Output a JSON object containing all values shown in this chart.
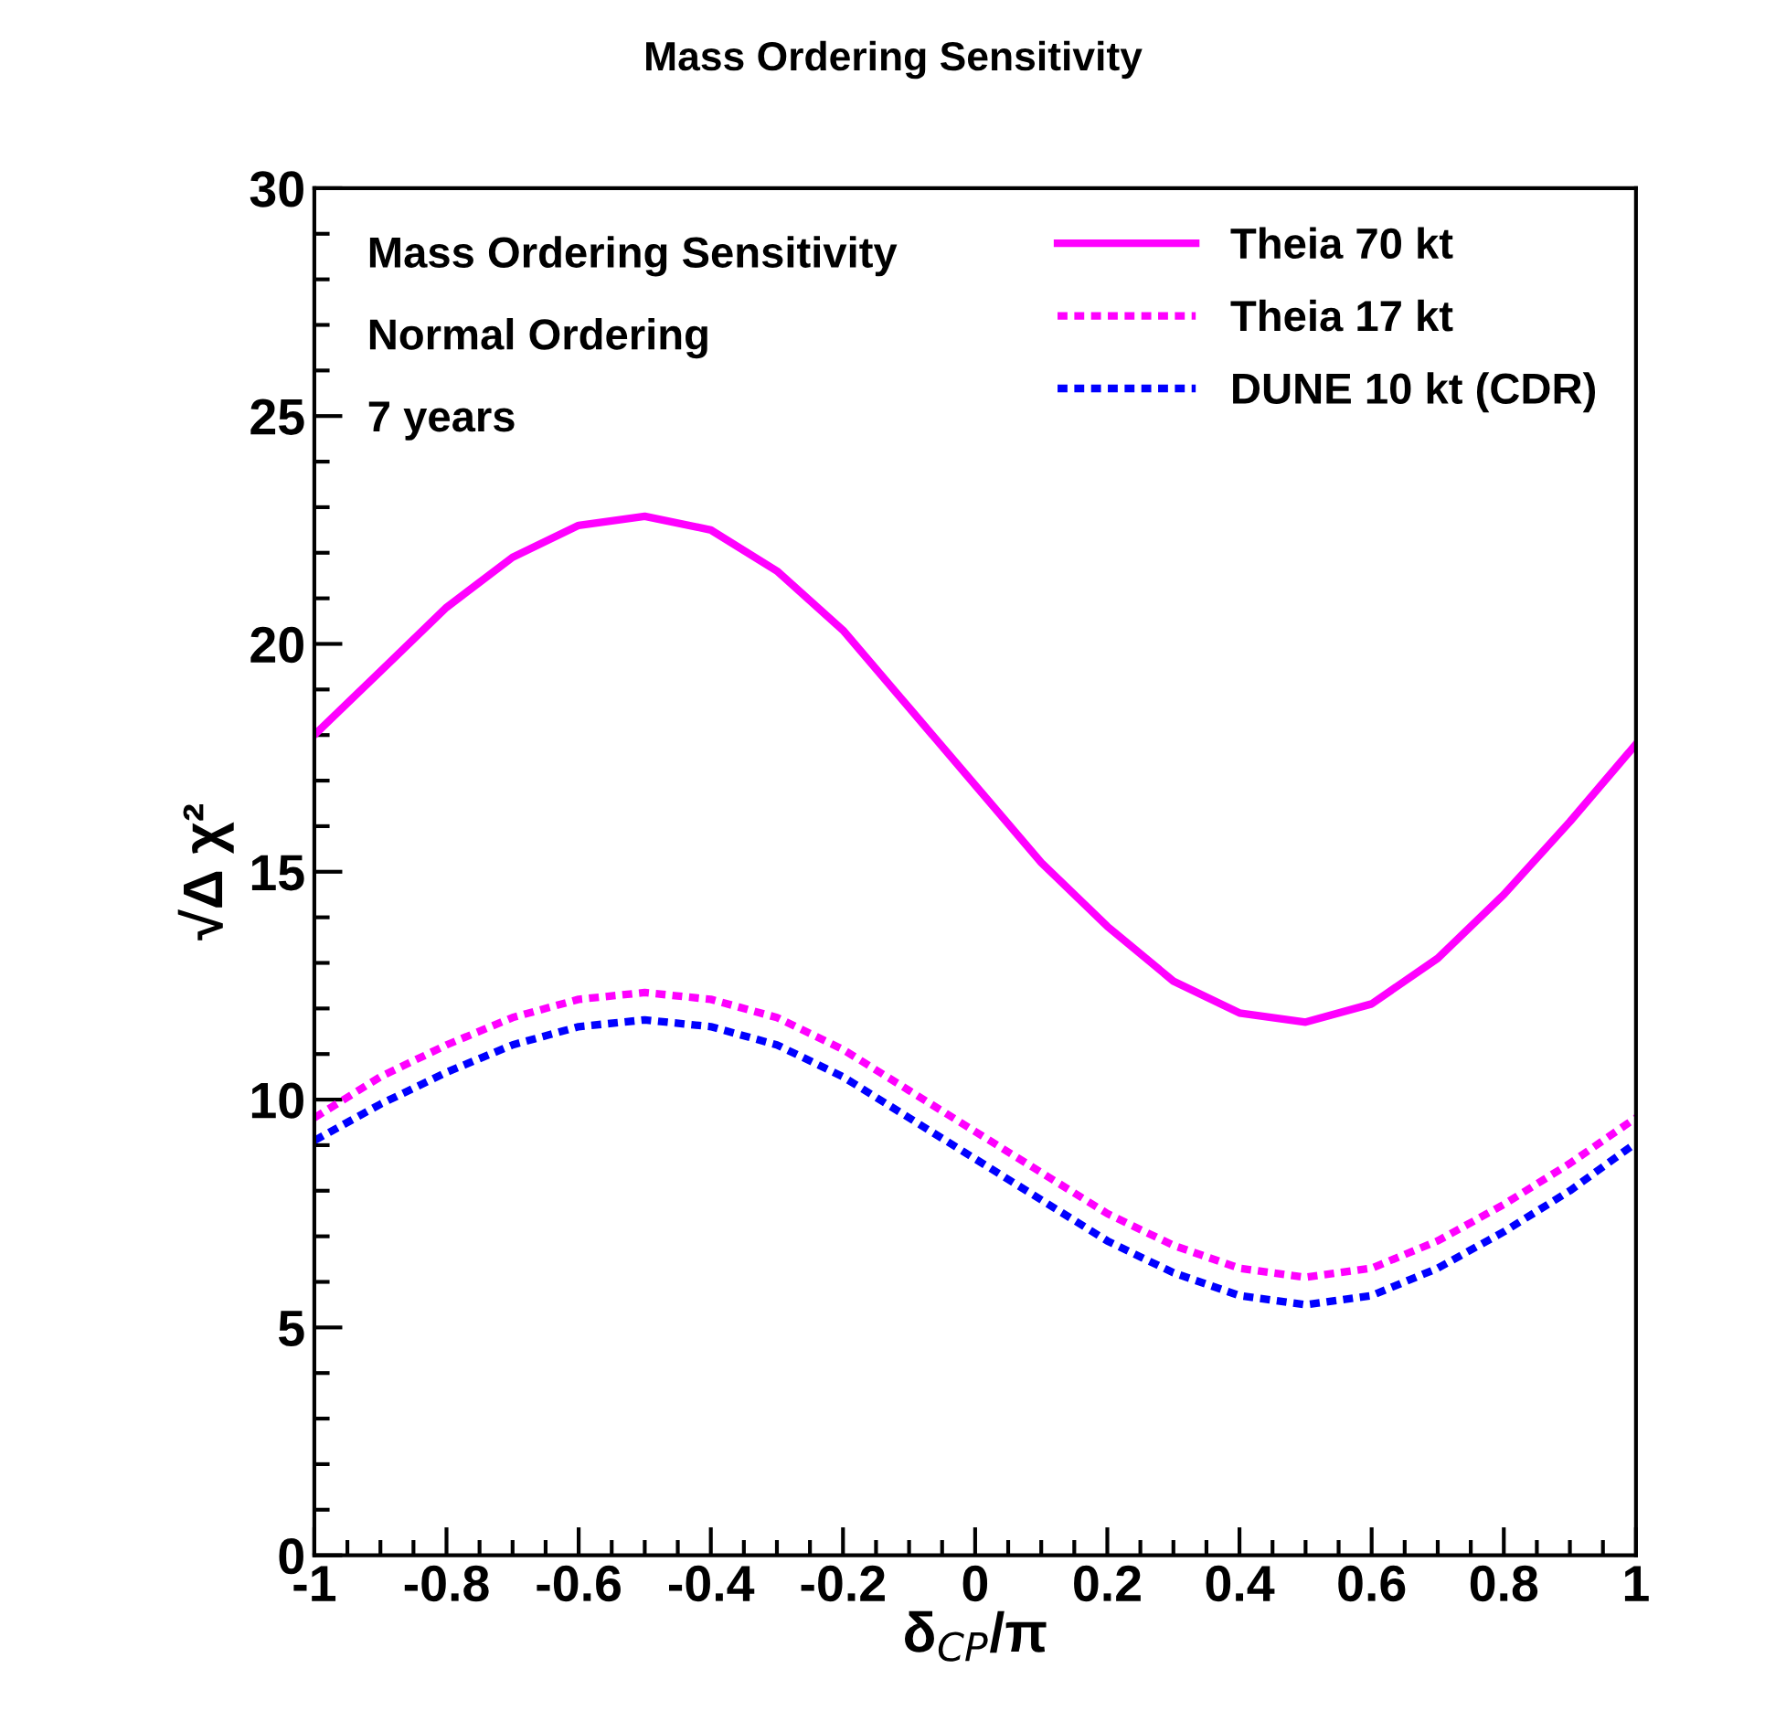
{
  "chart_data": {
    "type": "line",
    "title": "Mass Ordering Sensitivity",
    "xlabel": "δ$_{CP}$/π",
    "ylabel": "√Δ χ²",
    "annotations": [
      "Mass Ordering Sensitivity",
      "Normal Ordering",
      "7 years"
    ],
    "x": [
      -1,
      -0.9,
      -0.8,
      -0.7,
      -0.6,
      -0.5,
      -0.4,
      -0.3,
      -0.2,
      -0.1,
      0,
      0.1,
      0.2,
      0.3,
      0.4,
      0.5,
      0.6,
      0.7,
      0.8,
      0.9,
      1
    ],
    "series": [
      {
        "name": "Theia 70 kt",
        "color": "#ff00ff",
        "line_style": "solid",
        "values": [
          18.0,
          19.4,
          20.8,
          21.9,
          22.6,
          22.8,
          22.5,
          21.6,
          20.3,
          18.6,
          16.9,
          15.2,
          13.8,
          12.6,
          11.9,
          11.7,
          12.1,
          13.1,
          14.5,
          16.1,
          17.8
        ]
      },
      {
        "name": "Theia 17 kt",
        "color": "#ff00ff",
        "line_style": "dotted",
        "values": [
          9.6,
          10.5,
          11.2,
          11.8,
          12.2,
          12.35,
          12.2,
          11.8,
          11.1,
          10.2,
          9.3,
          8.4,
          7.5,
          6.8,
          6.3,
          6.1,
          6.3,
          6.9,
          7.7,
          8.6,
          9.6
        ]
      },
      {
        "name": "DUNE 10 kt (CDR)",
        "color": "#0000ff",
        "line_style": "dotted",
        "values": [
          9.1,
          9.9,
          10.6,
          11.2,
          11.6,
          11.75,
          11.6,
          11.2,
          10.5,
          9.6,
          8.7,
          7.8,
          6.9,
          6.2,
          5.7,
          5.5,
          5.7,
          6.3,
          7.1,
          8.0,
          9.05
        ]
      }
    ],
    "xlim": [
      -1,
      1
    ],
    "ylim": [
      0,
      30
    ],
    "xticks": [
      -1,
      -0.8,
      -0.6,
      -0.4,
      -0.2,
      0,
      0.2,
      0.4,
      0.6,
      0.8,
      1
    ],
    "yticks": [
      0,
      5,
      10,
      15,
      20,
      25,
      30
    ],
    "grid": false,
    "legend": "top right",
    "marker": "none"
  }
}
